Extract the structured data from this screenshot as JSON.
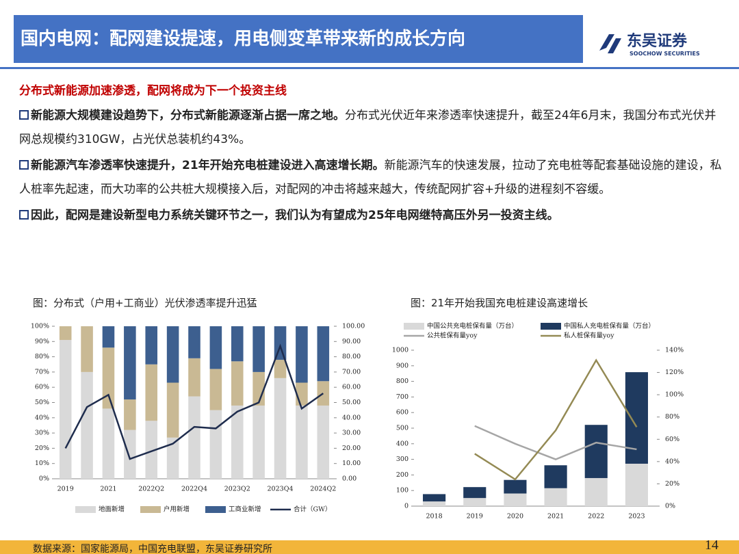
{
  "header": {
    "title": "国内电网：配网建设提速，用电侧变革带来新的成长方向",
    "logo_name": "东吴证券",
    "logo_sub": "SOOCHOW SECURITIES"
  },
  "subtitle": "分布式新能源加速渗透，配网将成为下一个投资主线",
  "bullets": [
    {
      "bold": "新能源大规模建设趋势下，分布式新能源逐渐占据一席之地。",
      "text": "分布式光伏近年来渗透率快速提升，截至24年6月末，我国分布式光伏并网总规模约310GW，占光伏总装机约43%。"
    },
    {
      "bold": "新能源汽车渗透率快速提升，21年开始充电桩建设进入高速增长期。",
      "text": "新能源汽车的快速发展，拉动了充电桩等配套基础设施的建设，私人桩率先起速，而大功率的公共桩大规模接入后，对配网的冲击将越来越大，传统配网扩容+升级的进程刻不容缓。"
    },
    {
      "bold": "因此，配网是建设新型电力系统关键环节之一，我们认为有望成为25年电网继特高压外另一投资主线。"
    }
  ],
  "chart_data": [
    {
      "type": "bar",
      "title": "图：分布式（户用+工商业）光伏渗透率提升迅猛",
      "stacked": true,
      "legend": "bottom",
      "categories": [
        "2019",
        null,
        "2021",
        null,
        "2022Q2",
        null,
        "2022Q4",
        null,
        "2023Q2",
        null,
        "2023Q4",
        null,
        "2024Q2"
      ],
      "series": [
        {
          "name": "地面新增",
          "color": "#d9d9d9",
          "values": [
            91,
            70,
            46,
            32,
            38,
            27,
            54,
            45,
            48,
            48,
            66,
            48,
            48
          ]
        },
        {
          "name": "户用新增",
          "color": "#c9b994",
          "values": [
            9,
            30,
            40,
            20,
            37,
            36,
            25,
            27,
            29,
            22,
            12,
            15,
            16
          ]
        },
        {
          "name": "工商业新增",
          "color": "#3d5f8f",
          "values": [
            0,
            0,
            14,
            48,
            25,
            37,
            21,
            28,
            23,
            30,
            22,
            37,
            36
          ]
        },
        {
          "name": "合计（GW）",
          "color": "#1f2d4e",
          "type": "line",
          "axis": "y2",
          "values": [
            20,
            47,
            55,
            13,
            18,
            23,
            34,
            33,
            44,
            50,
            87,
            46,
            56
          ]
        }
      ],
      "ylim": [
        0,
        100
      ],
      "yticks": [
        {
          "value": 0,
          "label": "0%"
        },
        {
          "value": 10,
          "label": "10%"
        },
        {
          "value": 20,
          "label": "20%"
        },
        {
          "value": 30,
          "label": "30%"
        },
        {
          "value": 40,
          "label": "40%"
        },
        {
          "value": 50,
          "label": "50%"
        },
        {
          "value": 60,
          "label": "60%"
        },
        {
          "value": 70,
          "label": "70%"
        },
        {
          "value": 80,
          "label": "80%"
        },
        {
          "value": 90,
          "label": "90%"
        },
        {
          "value": 100,
          "label": "100%"
        }
      ],
      "y2lim": [
        0,
        100
      ],
      "y2ticks": [
        {
          "value": 0,
          "label": "0.00"
        },
        {
          "value": 10,
          "label": "10.00"
        },
        {
          "value": 20,
          "label": "20.00"
        },
        {
          "value": 30,
          "label": "30.00"
        },
        {
          "value": 40,
          "label": "40.00"
        },
        {
          "value": 50,
          "label": "50.00"
        },
        {
          "value": 60,
          "label": "60.00"
        },
        {
          "value": 70,
          "label": "70.00"
        },
        {
          "value": 80,
          "label": "80.00"
        },
        {
          "value": 90,
          "label": "90.00"
        },
        {
          "value": 100,
          "label": "100.00"
        }
      ]
    },
    {
      "type": "bar",
      "title": "图：21年开始我国充电桩建设高速增长",
      "stacked": true,
      "legend": "top",
      "categories": [
        "2018",
        "2019",
        "2020",
        "2021",
        "2022",
        "2023"
      ],
      "series": [
        {
          "name": "中国公共充电桩保有量（万台）",
          "color": "#d9d9d9",
          "values": [
            30,
            52,
            81,
            115,
            180,
            272
          ]
        },
        {
          "name": "中国私人充电桩保有量（万台）",
          "color": "#1f3a5f",
          "values": [
            47,
            70,
            87,
            147,
            341,
            587
          ]
        },
        {
          "name": "公共桩保有量yoy",
          "color": "#a6a6a6",
          "type": "line",
          "axis": "y2",
          "values": [
            null,
            72,
            56,
            42,
            57,
            51
          ]
        },
        {
          "name": "私人桩保有量yoy",
          "color": "#948a54",
          "type": "line",
          "axis": "y2",
          "values": [
            null,
            47,
            24,
            68,
            131,
            71
          ]
        }
      ],
      "ylim": [
        0,
        1000
      ],
      "yticks": [
        0,
        100,
        200,
        300,
        400,
        500,
        600,
        700,
        800,
        900,
        1000
      ],
      "y2lim": [
        0,
        140
      ],
      "y2ticks": [
        {
          "value": 0,
          "label": "0%"
        },
        {
          "value": 20,
          "label": "20%"
        },
        {
          "value": 40,
          "label": "40%"
        },
        {
          "value": 60,
          "label": "60%"
        },
        {
          "value": 80,
          "label": "80%"
        },
        {
          "value": 100,
          "label": "100%"
        },
        {
          "value": 120,
          "label": "120%"
        },
        {
          "value": 140,
          "label": "140%"
        }
      ]
    }
  ],
  "footer": {
    "source": "数据来源：国家能源局，中国充电联盟，东吴证券研究所",
    "page": "14"
  }
}
